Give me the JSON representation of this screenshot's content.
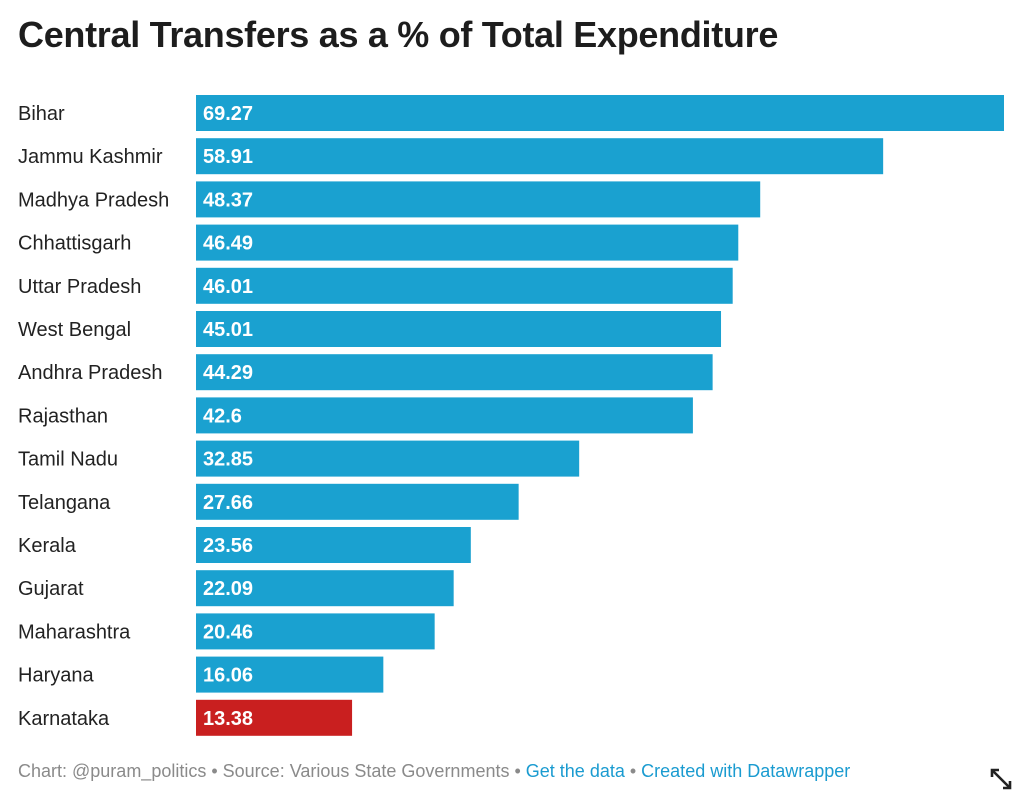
{
  "chart_data": {
    "type": "bar",
    "orientation": "horizontal",
    "title": "Central Transfers as a % of Total Expenditure",
    "categories": [
      "Bihar",
      "Jammu Kashmir",
      "Madhya Pradesh",
      "Chhattisgarh",
      "Uttar Pradesh",
      "West Bengal",
      "Andhra Pradesh",
      "Rajasthan",
      "Tamil Nadu",
      "Telangana",
      "Kerala",
      "Gujarat",
      "Maharashtra",
      "Haryana",
      "Karnataka"
    ],
    "values": [
      69.27,
      58.91,
      48.37,
      46.49,
      46.01,
      45.01,
      44.29,
      42.6,
      32.85,
      27.66,
      23.56,
      22.09,
      20.46,
      16.06,
      13.38
    ],
    "value_labels": [
      "69.27",
      "58.91",
      "48.37",
      "46.49",
      "46.01",
      "45.01",
      "44.29",
      "42.6",
      "32.85",
      "27.66",
      "23.56",
      "22.09",
      "20.46",
      "16.06",
      "13.38"
    ],
    "highlight_category": "Karnataka",
    "xlim": [
      0,
      69.27
    ],
    "xlabel": "",
    "ylabel": "",
    "grid": false,
    "colors": {
      "bar": "#1aa1d0",
      "highlight": "#c91f1f",
      "label_text": "#ffffff",
      "category_text": "#222222"
    }
  },
  "footer": {
    "chart_credit": "Chart: @puram_politics",
    "separator": " • ",
    "source": "Source: Various State Governments",
    "get_data_link": "Get the data",
    "created_with_link": "Created with Datawrapper"
  }
}
